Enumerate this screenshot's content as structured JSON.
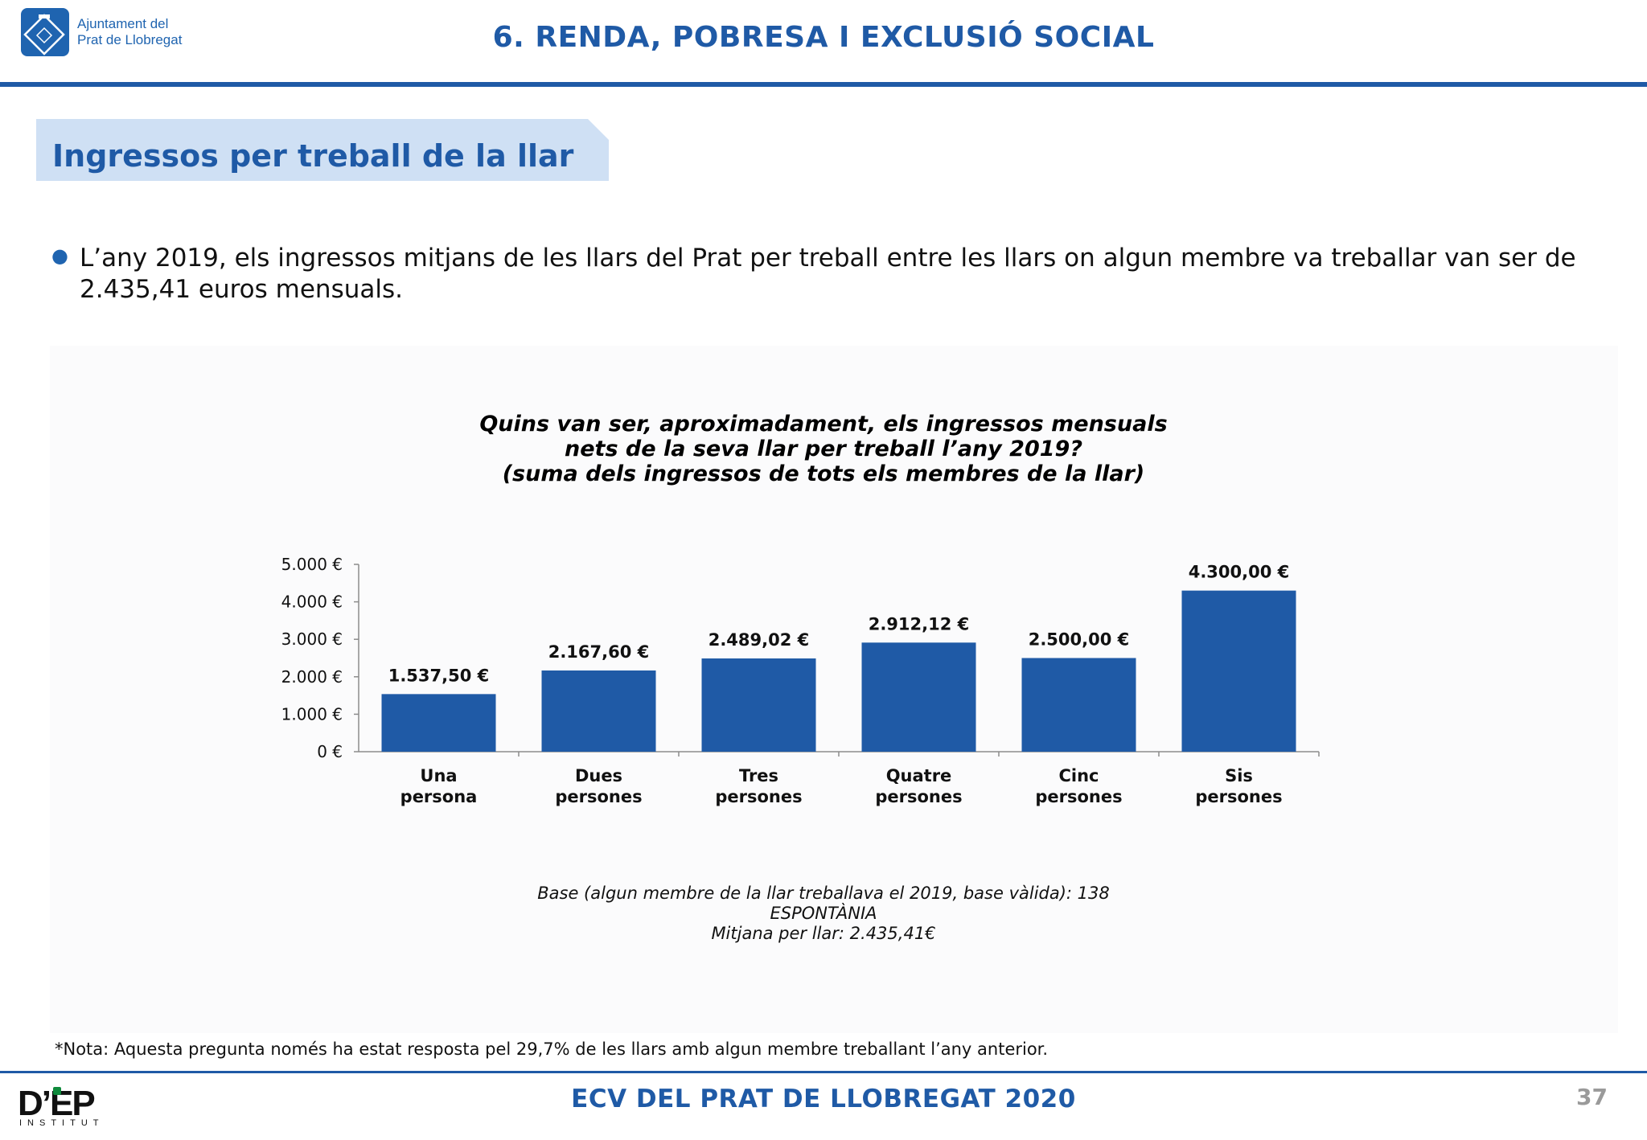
{
  "header": {
    "org_line1": "Ajuntament del",
    "org_line2": "Prat de Llobregat",
    "title": "6. RENDA, POBRESA I EXCLUSIÓ SOCIAL"
  },
  "section": {
    "title": "Ingressos per treball de la llar"
  },
  "bullet": {
    "text": "L’any 2019, els ingressos mitjans de les llars del Prat per treball entre les llars on algun membre va treballar van ser de 2.435,41 euros mensuals."
  },
  "chart_data": {
    "type": "bar",
    "title_lines": [
      "Quins van ser, aproximadament, els ingressos mensuals",
      "nets de la seva llar per treball l’any 2019?",
      "(suma dels ingressos de tots els membres de la llar)"
    ],
    "categories": [
      [
        "Una",
        "persona"
      ],
      [
        "Dues",
        "persones"
      ],
      [
        "Tres",
        "persones"
      ],
      [
        "Quatre",
        "persones"
      ],
      [
        "Cinc",
        "persones"
      ],
      [
        "Sis",
        "persones"
      ]
    ],
    "values": [
      1537.5,
      2167.6,
      2489.02,
      2912.12,
      2500.0,
      4300.0
    ],
    "data_labels": [
      "1.537,50 €",
      "2.167,60 €",
      "2.489,02 €",
      "2.912,12 €",
      "2.500,00 €",
      "4.300,00 €"
    ],
    "y_ticks": [
      0,
      1000,
      2000,
      3000,
      4000,
      5000
    ],
    "y_tick_labels": [
      "0 €",
      "1.000 €",
      "2.000 €",
      "3.000 €",
      "4.000 €",
      "5.000 €"
    ],
    "ylim": [
      0,
      5000
    ],
    "bar_color": "#1f5aa6",
    "grid": false,
    "legend": "none"
  },
  "notes": {
    "base_line1": "Base (algun membre de la llar treballava el 2019, base vàlida): 138",
    "base_line2": "ESPONTÀNIA",
    "base_line3": "Mitjana per llar: 2.435,41€",
    "nota": "*Nota: Aquesta pregunta només ha estat resposta pel 29,7% de les llars amb algun membre treballant l’any anterior."
  },
  "footer": {
    "title": "ECV DEL PRAT DE LLOBREGAT 2020",
    "page_number": "37",
    "brand": "D’EP",
    "brand_sub": "INSTITUT"
  },
  "colors": {
    "brand_blue": "#1f5aa6",
    "banner_bg": "#cfe0f4"
  }
}
